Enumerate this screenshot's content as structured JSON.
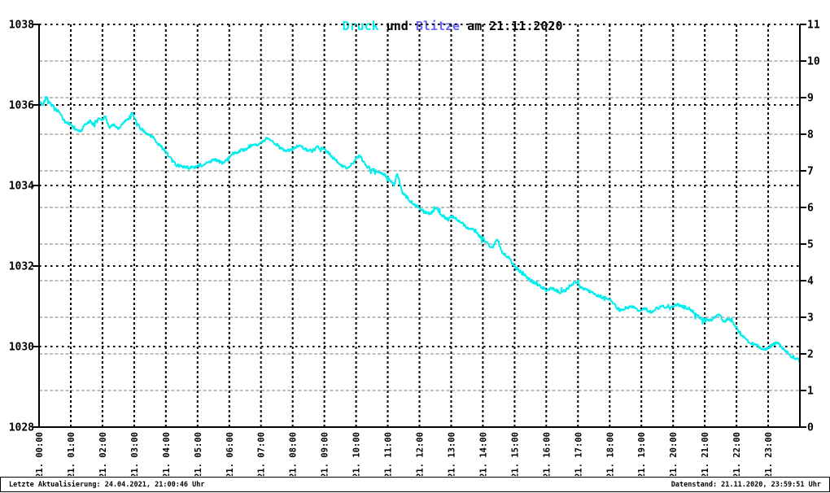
{
  "title": {
    "text": "Druck und Blitze am 21.11.2020",
    "segments": [
      {
        "text": "Druck ",
        "color_key": "pressure"
      },
      {
        "text": "und ",
        "color_key": "text"
      },
      {
        "text": "Blitze ",
        "color_key": "lightning"
      },
      {
        "text": "am 21.11.2020",
        "color_key": "text"
      }
    ]
  },
  "footer": {
    "left": "Letzte Aktualisierung: 24.04.2021, 21:00:46 Uhr",
    "right": "Datenstand: 21.11.2020, 23:59:51 Uhr"
  },
  "colors": {
    "pressure": "#00eded",
    "lightning": "#6666ff",
    "text": "#000000",
    "grid_black": "#000000",
    "grid_gray": "#bdbdbd",
    "background": "#ffffff"
  },
  "chart_data": {
    "type": "line",
    "title": "Druck und Blitze am 21.11.2020",
    "grid": {
      "horizontal_black_dotted": "left-axis major ticks",
      "horizontal_gray_dashed": "right-axis integer ticks",
      "vertical_black_dashed": "hourly"
    },
    "x_axis": {
      "range_hours": [
        0,
        24
      ],
      "tick_labels": [
        "21. 00:00",
        "21. 01:00",
        "21. 02:00",
        "21. 03:00",
        "21. 04:00",
        "21. 05:00",
        "21. 06:00",
        "21. 07:00",
        "21. 08:00",
        "21. 09:00",
        "21. 10:00",
        "21. 11:00",
        "21. 12:00",
        "21. 13:00",
        "21. 14:00",
        "21. 15:00",
        "21. 16:00",
        "21. 17:00",
        "21. 18:00",
        "21. 19:00",
        "21. 20:00",
        "21. 21:00",
        "21. 22:00",
        "21. 23:00"
      ]
    },
    "y_left": {
      "name": "Druck",
      "range": [
        1028,
        1038
      ],
      "ticks": [
        1038,
        1036,
        1034,
        1032,
        1030,
        1028
      ]
    },
    "y_right": {
      "name": "Blitze",
      "range": [
        0,
        11
      ],
      "ticks": [
        11,
        10,
        9,
        8,
        7,
        6,
        5,
        4,
        3,
        2,
        1,
        0
      ]
    },
    "jitter": {
      "amplitude": 0.045,
      "spike_amplitude": 0.11,
      "spike_chance": 0.05,
      "seed": 42
    },
    "series": [
      {
        "name": "Druck",
        "color_key": "pressure",
        "points": [
          [
            0.0,
            1036.1
          ],
          [
            0.12,
            1036.0
          ],
          [
            0.22,
            1036.2
          ],
          [
            0.35,
            1036.05
          ],
          [
            0.5,
            1035.9
          ],
          [
            0.65,
            1035.8
          ],
          [
            0.8,
            1035.6
          ],
          [
            1.0,
            1035.5
          ],
          [
            1.15,
            1035.4
          ],
          [
            1.3,
            1035.35
          ],
          [
            1.45,
            1035.5
          ],
          [
            1.6,
            1035.6
          ],
          [
            1.7,
            1035.5
          ],
          [
            1.85,
            1035.65
          ],
          [
            2.0,
            1035.65
          ],
          [
            2.1,
            1035.7
          ],
          [
            2.2,
            1035.45
          ],
          [
            2.35,
            1035.5
          ],
          [
            2.5,
            1035.4
          ],
          [
            2.65,
            1035.55
          ],
          [
            2.8,
            1035.65
          ],
          [
            2.95,
            1035.8
          ],
          [
            3.05,
            1035.6
          ],
          [
            3.15,
            1035.45
          ],
          [
            3.3,
            1035.35
          ],
          [
            3.5,
            1035.25
          ],
          [
            3.65,
            1035.15
          ],
          [
            3.8,
            1035.0
          ],
          [
            4.0,
            1034.85
          ],
          [
            4.2,
            1034.6
          ],
          [
            4.35,
            1034.5
          ],
          [
            4.55,
            1034.47
          ],
          [
            4.75,
            1034.45
          ],
          [
            4.95,
            1034.45
          ],
          [
            5.15,
            1034.5
          ],
          [
            5.3,
            1034.55
          ],
          [
            5.5,
            1034.65
          ],
          [
            5.65,
            1034.6
          ],
          [
            5.8,
            1034.55
          ],
          [
            5.95,
            1034.65
          ],
          [
            6.1,
            1034.8
          ],
          [
            6.3,
            1034.85
          ],
          [
            6.5,
            1034.9
          ],
          [
            6.7,
            1035.0
          ],
          [
            6.9,
            1035.0
          ],
          [
            7.1,
            1035.1
          ],
          [
            7.25,
            1035.2
          ],
          [
            7.4,
            1035.05
          ],
          [
            7.6,
            1034.95
          ],
          [
            7.8,
            1034.85
          ],
          [
            8.0,
            1034.9
          ],
          [
            8.2,
            1035.0
          ],
          [
            8.4,
            1034.9
          ],
          [
            8.6,
            1034.85
          ],
          [
            8.8,
            1034.95
          ],
          [
            9.0,
            1034.9
          ],
          [
            9.2,
            1034.75
          ],
          [
            9.4,
            1034.6
          ],
          [
            9.55,
            1034.5
          ],
          [
            9.7,
            1034.42
          ],
          [
            9.95,
            1034.6
          ],
          [
            10.1,
            1034.75
          ],
          [
            10.3,
            1034.5
          ],
          [
            10.5,
            1034.4
          ],
          [
            10.7,
            1034.35
          ],
          [
            10.9,
            1034.25
          ],
          [
            11.1,
            1034.1
          ],
          [
            11.2,
            1034.0
          ],
          [
            11.3,
            1034.3
          ],
          [
            11.45,
            1033.85
          ],
          [
            11.6,
            1033.7
          ],
          [
            11.8,
            1033.55
          ],
          [
            12.0,
            1033.45
          ],
          [
            12.15,
            1033.35
          ],
          [
            12.35,
            1033.3
          ],
          [
            12.55,
            1033.45
          ],
          [
            12.7,
            1033.25
          ],
          [
            12.9,
            1033.15
          ],
          [
            13.05,
            1033.25
          ],
          [
            13.2,
            1033.15
          ],
          [
            13.35,
            1033.05
          ],
          [
            13.5,
            1032.95
          ],
          [
            13.7,
            1032.9
          ],
          [
            13.9,
            1032.75
          ],
          [
            14.1,
            1032.6
          ],
          [
            14.3,
            1032.45
          ],
          [
            14.45,
            1032.7
          ],
          [
            14.6,
            1032.35
          ],
          [
            14.75,
            1032.25
          ],
          [
            14.9,
            1032.1
          ],
          [
            15.05,
            1031.95
          ],
          [
            15.2,
            1031.85
          ],
          [
            15.4,
            1031.7
          ],
          [
            15.6,
            1031.6
          ],
          [
            15.8,
            1031.5
          ],
          [
            16.0,
            1031.4
          ],
          [
            16.2,
            1031.45
          ],
          [
            16.4,
            1031.35
          ],
          [
            16.6,
            1031.4
          ],
          [
            16.8,
            1031.55
          ],
          [
            16.95,
            1031.6
          ],
          [
            17.1,
            1031.45
          ],
          [
            17.3,
            1031.4
          ],
          [
            17.5,
            1031.3
          ],
          [
            17.7,
            1031.25
          ],
          [
            17.9,
            1031.2
          ],
          [
            18.1,
            1031.1
          ],
          [
            18.3,
            1030.9
          ],
          [
            18.5,
            1030.95
          ],
          [
            18.7,
            1031.0
          ],
          [
            18.9,
            1030.9
          ],
          [
            19.1,
            1030.95
          ],
          [
            19.3,
            1030.85
          ],
          [
            19.5,
            1030.95
          ],
          [
            19.7,
            1031.0
          ],
          [
            19.9,
            1030.95
          ],
          [
            20.1,
            1031.05
          ],
          [
            20.3,
            1031.0
          ],
          [
            20.5,
            1030.95
          ],
          [
            20.7,
            1030.8
          ],
          [
            20.9,
            1030.7
          ],
          [
            21.1,
            1030.65
          ],
          [
            21.3,
            1030.7
          ],
          [
            21.45,
            1030.8
          ],
          [
            21.6,
            1030.6
          ],
          [
            21.75,
            1030.7
          ],
          [
            21.9,
            1030.6
          ],
          [
            22.05,
            1030.4
          ],
          [
            22.2,
            1030.25
          ],
          [
            22.4,
            1030.1
          ],
          [
            22.6,
            1030.05
          ],
          [
            22.8,
            1029.95
          ],
          [
            23.0,
            1029.95
          ],
          [
            23.15,
            1030.05
          ],
          [
            23.3,
            1030.1
          ],
          [
            23.45,
            1029.95
          ],
          [
            23.6,
            1029.85
          ],
          [
            23.75,
            1029.75
          ],
          [
            23.9,
            1029.7
          ],
          [
            24.0,
            1029.65
          ]
        ]
      },
      {
        "name": "Blitze",
        "color_key": "lightning",
        "points": []
      }
    ]
  }
}
